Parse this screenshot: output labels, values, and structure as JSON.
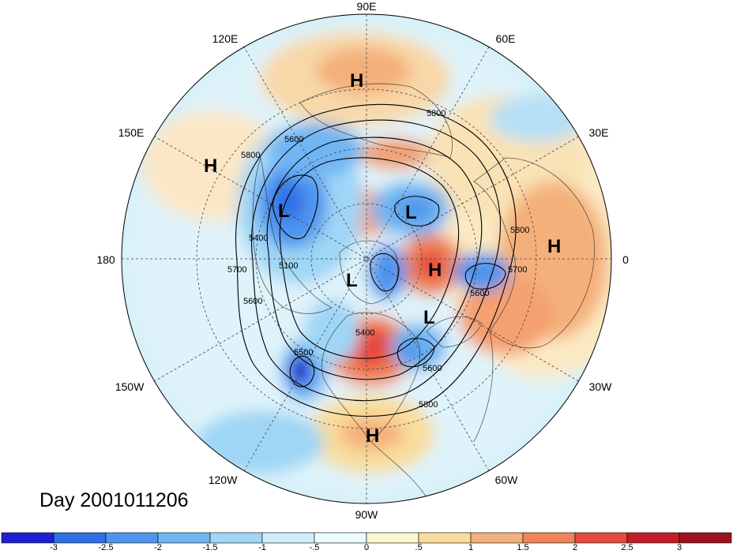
{
  "title": "Day 2001011206",
  "longitude_labels": [
    "90E",
    "60E",
    "30E",
    "0",
    "30W",
    "60W",
    "90W",
    "120W",
    "150W",
    "180",
    "150E",
    "120E"
  ],
  "pressure_centers": [
    {
      "type": "H"
    },
    {
      "type": "H"
    },
    {
      "type": "L"
    },
    {
      "type": "L"
    },
    {
      "type": "L"
    },
    {
      "type": "H"
    },
    {
      "type": "H"
    },
    {
      "type": "L"
    },
    {
      "type": "H"
    }
  ],
  "contour_labels": [
    "5800",
    "5600",
    "5800",
    "5400",
    "5700",
    "5600",
    "5100",
    "5800",
    "5700",
    "5600",
    "5400",
    "5500",
    "5600",
    "5800"
  ],
  "colorbar": {
    "labels": [
      "-3",
      "-2.5",
      "-2",
      "-1.5",
      "-1",
      "-.5",
      "0",
      ".5",
      "1",
      "1.5",
      "2",
      "2.5",
      "3"
    ],
    "colors": [
      "#1f1fd0",
      "#2f6fe6",
      "#4f95ee",
      "#70b6f3",
      "#9fd6f6",
      "#cdeef9",
      "#ecfbfd",
      "#fdf6d3",
      "#f8dd9c",
      "#f4b07a",
      "#ef8458",
      "#e64a3c",
      "#c01f2a",
      "#9e1220"
    ]
  }
}
